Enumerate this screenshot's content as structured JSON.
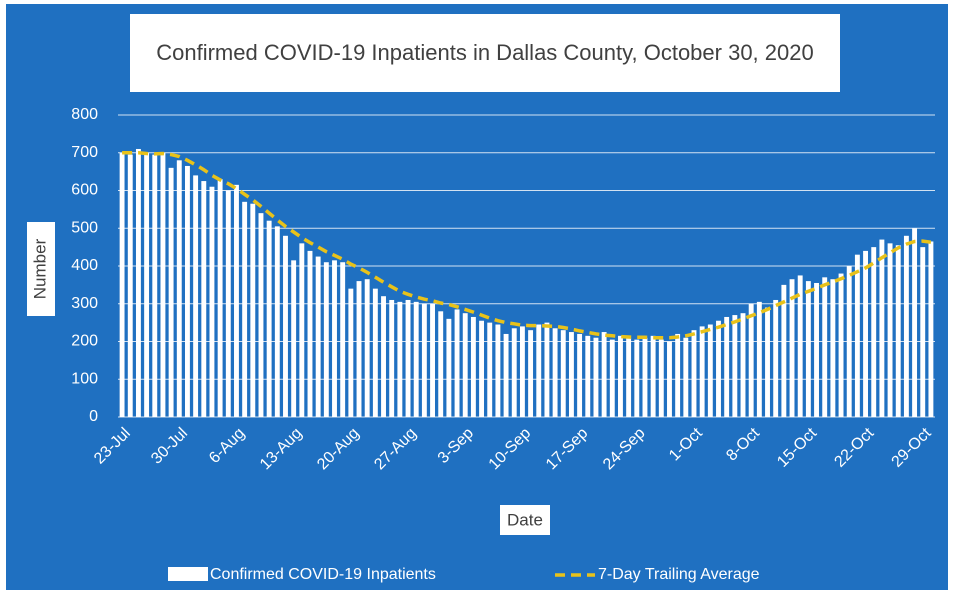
{
  "chart_data": {
    "type": "bar",
    "title": "Confirmed COVID-19 Inpatients in Dallas County, October 30, 2020",
    "x_label": "Date",
    "y_label": "Number",
    "categories": [
      "23-Jul",
      null,
      null,
      null,
      null,
      null,
      null,
      "30-Jul",
      null,
      null,
      null,
      null,
      null,
      null,
      "6-Aug",
      null,
      null,
      null,
      null,
      null,
      null,
      "13-Aug",
      null,
      null,
      null,
      null,
      null,
      null,
      "20-Aug",
      null,
      null,
      null,
      null,
      null,
      null,
      "27-Aug",
      null,
      null,
      null,
      null,
      null,
      null,
      "3-Sep",
      null,
      null,
      null,
      null,
      null,
      null,
      "10-Sep",
      null,
      null,
      null,
      null,
      null,
      null,
      "17-Sep",
      null,
      null,
      null,
      null,
      null,
      null,
      "24-Sep",
      null,
      null,
      null,
      null,
      null,
      null,
      "1-Oct",
      null,
      null,
      null,
      null,
      null,
      null,
      "8-Oct",
      null,
      null,
      null,
      null,
      null,
      null,
      "15-Oct",
      null,
      null,
      null,
      null,
      null,
      null,
      "22-Oct",
      null,
      null,
      null,
      null,
      null,
      null,
      "29-Oct",
      null
    ],
    "series": [
      {
        "name": "Confirmed COVID-19 Inpatients",
        "color": "#ffffff",
        "values": [
          700,
          695,
          710,
          700,
          695,
          700,
          660,
          680,
          665,
          640,
          625,
          610,
          630,
          600,
          615,
          570,
          565,
          540,
          520,
          505,
          480,
          415,
          460,
          440,
          425,
          410,
          415,
          410,
          340,
          360,
          365,
          340,
          320,
          310,
          305,
          310,
          305,
          300,
          300,
          280,
          260,
          285,
          275,
          265,
          255,
          250,
          245,
          220,
          235,
          240,
          230,
          245,
          250,
          235,
          230,
          225,
          220,
          215,
          210,
          225,
          205,
          215,
          210,
          205,
          210,
          215,
          205,
          200,
          220,
          210,
          230,
          240,
          245,
          255,
          265,
          270,
          275,
          300,
          305,
          290,
          310,
          350,
          365,
          375,
          360,
          355,
          370,
          365,
          380,
          400,
          430,
          440,
          450,
          470,
          460,
          455,
          480,
          500,
          450,
          465
        ]
      },
      {
        "name": "7-Day Trailing Average",
        "color": "#e8c21a",
        "values": [
          700,
          700,
          700,
          698,
          697,
          698,
          695,
          690,
          680,
          668,
          655,
          640,
          628,
          618,
          605,
          590,
          575,
          558,
          540,
          522,
          505,
          490,
          475,
          462,
          450,
          438,
          428,
          418,
          405,
          395,
          383,
          370,
          357,
          345,
          333,
          325,
          318,
          312,
          308,
          302,
          298,
          292,
          285,
          278,
          270,
          262,
          255,
          250,
          247,
          243,
          242,
          242,
          241,
          240,
          237,
          233,
          228,
          224,
          220,
          217,
          215,
          213,
          212,
          211,
          211,
          210,
          210,
          210,
          212,
          215,
          220,
          226,
          232,
          238,
          245,
          252,
          260,
          268,
          276,
          285,
          295,
          305,
          315,
          325,
          333,
          341,
          350,
          358,
          366,
          375,
          385,
          395,
          408,
          422,
          435,
          448,
          458,
          465,
          466,
          463
        ]
      }
    ],
    "ylim": [
      0,
      800
    ],
    "yticks": [
      0,
      100,
      200,
      300,
      400,
      500,
      600,
      700,
      800
    ],
    "grid": true
  }
}
